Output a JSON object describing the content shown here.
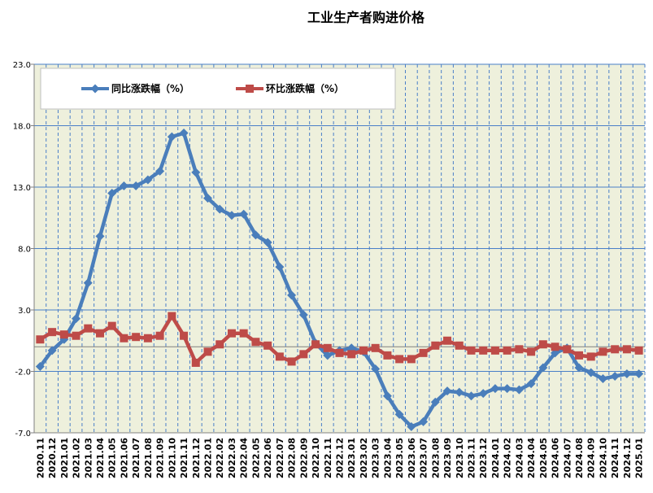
{
  "chart_data": {
    "type": "line",
    "title": "工业生产者购进价格",
    "xlabel": "",
    "ylabel": "",
    "ylim": [
      -7.0,
      23.0
    ],
    "yticks": [
      "-7.0",
      "-2.0",
      "3.0",
      "8.0",
      "13.0",
      "18.0",
      "23.0"
    ],
    "grid": true,
    "legend_position": "top-left",
    "colors": {
      "plot_background": "#eef0dc",
      "grid": "#4a7fc8",
      "series_yoy": "#4a7ebb",
      "series_mom": "#be4b48",
      "zero_line": "#808080"
    },
    "categories": [
      "2020.11",
      "2020.12",
      "2021.01",
      "2021.02",
      "2021.03",
      "2021.04",
      "2021.05",
      "2021.06",
      "2021.07",
      "2021.08",
      "2021.09",
      "2021.10",
      "2021.11",
      "2021.12",
      "2022.01",
      "2022.02",
      "2022.03",
      "2022.04",
      "2022.05",
      "2022.06",
      "2022.07",
      "2022.08",
      "2022.09",
      "2022.10",
      "2022.11",
      "2022.12",
      "2023.01",
      "2023.02",
      "2023.03",
      "2023.04",
      "2023.05",
      "2023.06",
      "2023.07",
      "2023.08",
      "2023.09",
      "2023.10",
      "2023.11",
      "2023.12",
      "2024.01",
      "2024.02",
      "2024.03",
      "2024.04",
      "2024.05",
      "2024.06",
      "2024.07",
      "2024.08",
      "2024.09",
      "2024.10",
      "2024.11",
      "2024.12",
      "2025.01"
    ],
    "series": [
      {
        "name": "同比涨跌幅（%）",
        "marker": "diamond",
        "values": [
          -1.6,
          -0.3,
          0.6,
          2.3,
          5.2,
          9.0,
          12.5,
          13.1,
          13.1,
          13.6,
          14.3,
          17.1,
          17.4,
          14.2,
          12.1,
          11.2,
          10.7,
          10.8,
          9.1,
          8.5,
          6.5,
          4.2,
          2.6,
          0.3,
          -0.7,
          -0.3,
          -0.1,
          -0.4,
          -1.8,
          -4.0,
          -5.5,
          -6.5,
          -6.1,
          -4.5,
          -3.6,
          -3.7,
          -4.0,
          -3.8,
          -3.4,
          -3.4,
          -3.5,
          -3.0,
          -1.7,
          -0.5,
          -0.1,
          -1.7,
          -2.1,
          -2.6,
          -2.4,
          -2.2,
          -2.2
        ]
      },
      {
        "name": "环比涨跌幅（%）",
        "marker": "square",
        "values": [
          0.6,
          1.2,
          1.0,
          0.9,
          1.5,
          1.1,
          1.7,
          0.7,
          0.8,
          0.7,
          0.9,
          2.5,
          0.9,
          -1.3,
          -0.4,
          0.2,
          1.1,
          1.1,
          0.4,
          0.1,
          -0.8,
          -1.2,
          -0.6,
          0.2,
          -0.1,
          -0.5,
          -0.6,
          -0.3,
          -0.1,
          -0.7,
          -1.0,
          -1.0,
          -0.5,
          0.1,
          0.5,
          0.1,
          -0.3,
          -0.3,
          -0.3,
          -0.3,
          -0.2,
          -0.4,
          0.2,
          0.0,
          -0.2,
          -0.7,
          -0.8,
          -0.4,
          -0.2,
          -0.2,
          -0.3
        ]
      }
    ]
  }
}
